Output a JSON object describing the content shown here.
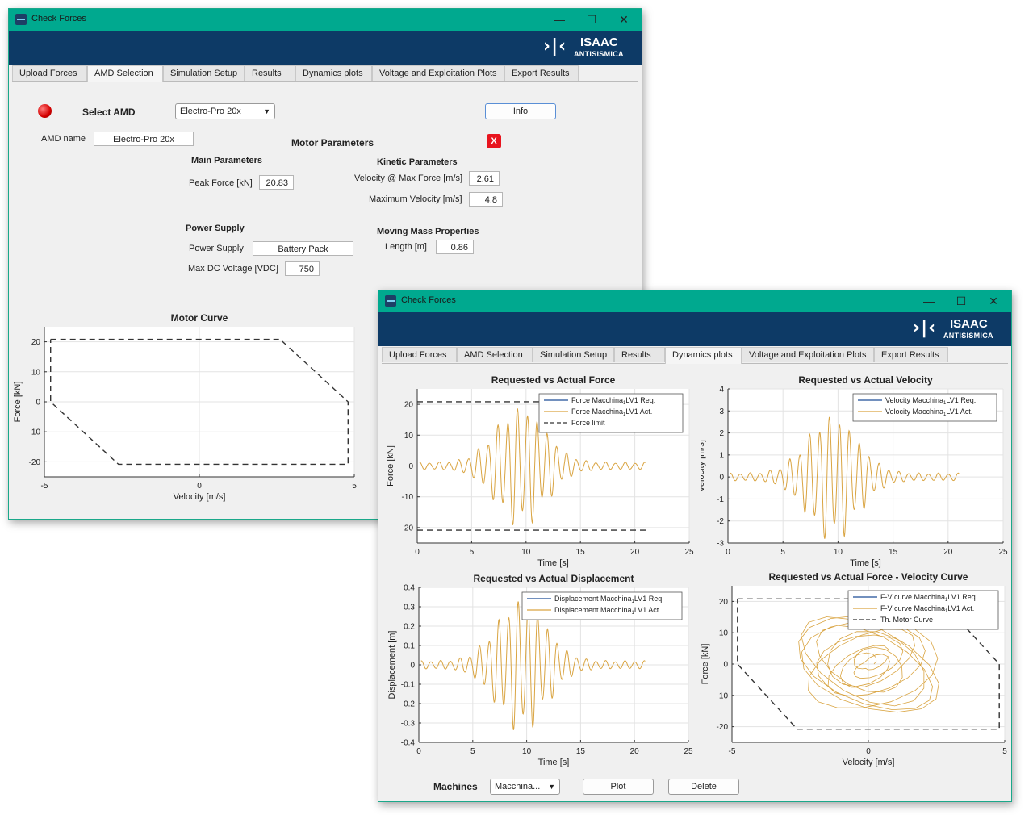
{
  "window1": {
    "title": "Check Forces",
    "controls": {
      "minimize": "—",
      "maximize": "☐",
      "close": "✕"
    },
    "logo": {
      "glyph": "›|‹",
      "line1": "ISAAC",
      "line2": "ANTISISMICA"
    },
    "tabs": [
      "Upload Forces",
      "AMD Selection",
      "Simulation Setup",
      "Results",
      "Dynamics plots",
      "Voltage and Exploitation Plots",
      "Export Results"
    ],
    "active_tab": "AMD Selection",
    "select_amd_label": "Select AMD",
    "select_amd_value": "Electro-Pro 20x",
    "info_button": "Info",
    "amd_name_label": "AMD name",
    "amd_name_value": "Electro-Pro 20x",
    "motor_parameters_title": "Motor Parameters",
    "close_x": "X",
    "main_parameters_title": "Main Parameters",
    "peak_force_label": "Peak Force [kN]",
    "peak_force_value": "20.83",
    "kinetic_parameters_title": "Kinetic Parameters",
    "velocity_max_force_label": "Velocity @ Max Force [m/s]",
    "velocity_max_force_value": "2.61",
    "max_velocity_label": "Maximum Velocity [m/s]",
    "max_velocity_value": "4.8",
    "power_supply_title": "Power Supply",
    "power_supply_label": "Power Supply",
    "power_supply_value": "Battery Pack",
    "max_dc_voltage_label": "Max DC Voltage [VDC]",
    "max_dc_voltage_value": "750",
    "moving_mass_title": "Moving Mass Properties",
    "length_label": "Length [m]",
    "length_value": "0.86"
  },
  "window2": {
    "title": "Check Forces",
    "controls": {
      "minimize": "—",
      "maximize": "☐",
      "close": "✕"
    },
    "logo": {
      "glyph": "›|‹",
      "line1": "ISAAC",
      "line2": "ANTISISMICA"
    },
    "tabs": [
      "Upload Forces",
      "AMD Selection",
      "Simulation Setup",
      "Results",
      "Dynamics plots",
      "Voltage and Exploitation Plots",
      "Export Results"
    ],
    "active_tab": "Dynamics plots",
    "machines_label": "Machines",
    "machines_value": "Macchina...",
    "plot_button": "Plot",
    "delete_button": "Delete"
  },
  "chart_data": [
    {
      "id": "motor-curve",
      "type": "line",
      "title": "Motor Curve",
      "xlabel": "Velocity [m/s]",
      "ylabel": "Force [kN]",
      "xlim": [
        -5,
        5
      ],
      "ylim": [
        -25,
        25
      ],
      "xticks": [
        -5,
        0,
        5
      ],
      "yticks": [
        -20,
        -10,
        0,
        10,
        20
      ],
      "grid": true,
      "series": [
        {
          "style": "dashed",
          "color": "#333333",
          "points": [
            [
              -4.8,
              20.8
            ],
            [
              2.61,
              20.8
            ],
            [
              4.8,
              0
            ],
            [
              4.8,
              -20.8
            ],
            [
              -2.61,
              -20.8
            ],
            [
              -4.8,
              0
            ],
            [
              -4.8,
              20.8
            ]
          ]
        }
      ]
    },
    {
      "id": "force-plot",
      "type": "line",
      "title": "Requested vs Actual Force",
      "xlabel": "Time [s]",
      "ylabel": "Force [kN]",
      "xlim": [
        0,
        25
      ],
      "ylim": [
        -25,
        25
      ],
      "xticks": [
        0,
        5,
        10,
        15,
        20,
        25
      ],
      "yticks": [
        -20,
        -10,
        0,
        10,
        20
      ],
      "legend": "top-right",
      "grid": true,
      "series": [
        {
          "name": "Force  Macchina",
          "sub": "1",
          "suffix": "LV1  Req.",
          "color": "#1f4e96",
          "style": "solid"
        },
        {
          "name": "Force  Macchina",
          "sub": "1",
          "suffix": "LV1  Act.",
          "color": "#d9a441",
          "style": "solid"
        },
        {
          "name": "Force limit",
          "color": "#333333",
          "style": "dashed",
          "values": [
            20.83,
            -20.83
          ]
        }
      ],
      "signal": {
        "t_start": 0.2,
        "t_end": 21,
        "peak": 20.5,
        "t_peak": 9.5,
        "period": 0.9
      }
    },
    {
      "id": "velocity-plot",
      "type": "line",
      "title": "Requested vs Actual Velocity",
      "xlabel": "Time [s]",
      "ylabel": "Velocity [m/s]",
      "xlim": [
        0,
        25
      ],
      "ylim": [
        -3,
        4
      ],
      "xticks": [
        0,
        5,
        10,
        15,
        20,
        25
      ],
      "yticks": [
        -3,
        -2,
        -1,
        0,
        1,
        2,
        3,
        4
      ],
      "legend": "top-right",
      "grid": true,
      "series": [
        {
          "name": "Velocity  Macchina",
          "sub": "1",
          "suffix": "LV1  Req.",
          "color": "#1f4e96",
          "style": "solid"
        },
        {
          "name": "Velocity  Macchina",
          "sub": "1",
          "suffix": "LV1  Act.",
          "color": "#d9a441",
          "style": "solid"
        }
      ],
      "signal": {
        "t_start": 0.2,
        "t_end": 21,
        "peak": 3.0,
        "t_peak": 9.5,
        "period": 0.9
      }
    },
    {
      "id": "displacement-plot",
      "type": "line",
      "title": "Requested vs Actual Displacement",
      "xlabel": "Time [s]",
      "ylabel": "Displacement [m]",
      "xlim": [
        0,
        25
      ],
      "ylim": [
        -0.4,
        0.4
      ],
      "xticks": [
        0,
        5,
        10,
        15,
        20,
        25
      ],
      "yticks": [
        -0.4,
        -0.3,
        -0.2,
        -0.1,
        0,
        0.1,
        0.2,
        0.3,
        0.4
      ],
      "legend": "top-right",
      "grid": true,
      "series": [
        {
          "name": "Displacement  Macchina",
          "sub": "1",
          "suffix": "LV1  Req.",
          "color": "#1f4e96",
          "style": "solid"
        },
        {
          "name": "Displacement  Macchina",
          "sub": "1",
          "suffix": "LV1  Act.",
          "color": "#d9a441",
          "style": "solid"
        }
      ],
      "signal": {
        "t_start": 0.2,
        "t_end": 21,
        "peak": 0.36,
        "t_peak": 9.5,
        "period": 0.9
      }
    },
    {
      "id": "fv-plot",
      "type": "line",
      "title": "Requested vs Actual Force - Velocity Curve",
      "xlabel": "Velocity [m/s]",
      "ylabel": "Force [kN]",
      "xlim": [
        -5,
        5
      ],
      "ylim": [
        -25,
        25
      ],
      "xticks": [
        -5,
        0,
        5
      ],
      "yticks": [
        -20,
        -10,
        0,
        10,
        20
      ],
      "legend": "top-right",
      "grid": true,
      "series": [
        {
          "name": "F-V  curve  Macchina",
          "sub": "1",
          "suffix": "LV1  Req.",
          "color": "#1f4e96",
          "style": "solid"
        },
        {
          "name": "F-V  curve  Macchina",
          "sub": "1",
          "suffix": "LV1  Act.",
          "color": "#d9a441",
          "style": "solid"
        },
        {
          "name": "Th. Motor Curve",
          "color": "#333333",
          "style": "dashed",
          "points": [
            [
              -4.8,
              20.8
            ],
            [
              2.61,
              20.8
            ],
            [
              4.8,
              0
            ],
            [
              4.8,
              -20.8
            ],
            [
              -2.61,
              -20.8
            ],
            [
              -4.8,
              0
            ],
            [
              -4.8,
              20.8
            ]
          ]
        }
      ]
    }
  ]
}
